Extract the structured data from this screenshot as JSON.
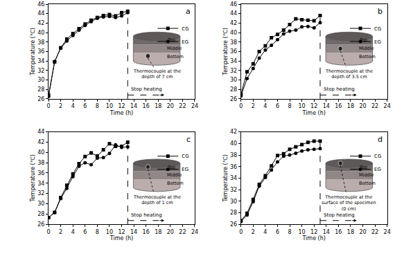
{
  "chart_data": [
    {
      "type": "line",
      "panel_label": "a",
      "x_label": "Time (h)",
      "y_label": "Temperature (℃)",
      "x": [
        0,
        1,
        2,
        3,
        4,
        5,
        6,
        7,
        8,
        9,
        10,
        11,
        12,
        13
      ],
      "series": [
        {
          "name": "CG",
          "color": "#000000",
          "marker": "square",
          "values": [
            26.8,
            33.8,
            36.8,
            38.6,
            39.8,
            40.8,
            41.8,
            42.6,
            43.2,
            43.6,
            43.8,
            43.5,
            44.2,
            44.5
          ]
        },
        {
          "name": "EG",
          "color": "#000000",
          "marker": "circle",
          "values": [
            26.5,
            33.9,
            36.7,
            38.2,
            39.4,
            40.5,
            41.5,
            42.3,
            43.0,
            43.3,
            43.4,
            43.2,
            43.5,
            44.2
          ]
        }
      ],
      "xlim": [
        0,
        24
      ],
      "xticks": [
        0,
        2,
        4,
        6,
        8,
        10,
        12,
        14,
        16,
        18,
        20,
        22,
        24
      ],
      "ylim": [
        26,
        46
      ],
      "yticks": [
        26,
        28,
        30,
        32,
        34,
        36,
        38,
        40,
        42,
        44,
        46
      ],
      "annotations": [
        {
          "text": "Stop heating",
          "x": 13
        }
      ],
      "inset": {
        "layers": [
          "Top",
          "Middle",
          "Bottom"
        ],
        "thermocouple": [
          "Thermocouple at the",
          "depth of 7 cm"
        ]
      }
    },
    {
      "type": "line",
      "panel_label": "b",
      "x_label": "Time (h)",
      "y_label": "Temperature (℃)",
      "x": [
        0,
        1,
        2,
        3,
        4,
        5,
        6,
        7,
        8,
        9,
        10,
        11,
        12,
        13
      ],
      "series": [
        {
          "name": "CG",
          "color": "#000000",
          "marker": "square",
          "values": [
            27.0,
            31.7,
            33.4,
            36.0,
            37.2,
            38.9,
            39.6,
            40.5,
            41.7,
            42.9,
            42.7,
            42.6,
            42.5,
            43.6
          ]
        },
        {
          "name": "EG",
          "color": "#000000",
          "marker": "circle",
          "values": [
            26.6,
            30.3,
            32.4,
            34.6,
            36.3,
            37.3,
            38.5,
            39.7,
            40.3,
            40.5,
            41.2,
            41.3,
            41.0,
            42.1
          ]
        }
      ],
      "xlim": [
        0,
        24
      ],
      "xticks": [
        0,
        2,
        4,
        6,
        8,
        10,
        12,
        14,
        16,
        18,
        20,
        22,
        24
      ],
      "ylim": [
        26,
        46
      ],
      "yticks": [
        26,
        28,
        30,
        32,
        34,
        36,
        38,
        40,
        42,
        44,
        46
      ],
      "annotations": [
        {
          "text": "Stop heating",
          "x": 13
        }
      ],
      "inset": {
        "layers": [
          "Top",
          "Middle",
          "Bottom"
        ],
        "thermocouple": [
          "Thermocouple at the",
          "depth of 3.5 cm"
        ]
      }
    },
    {
      "type": "line",
      "panel_label": "c",
      "x_label": "Time (h)",
      "y_label": "Temperature (℃)",
      "x": [
        0,
        1,
        2,
        3,
        4,
        5,
        6,
        7,
        8,
        9,
        10,
        11,
        12,
        13
      ],
      "series": [
        {
          "name": "CG",
          "color": "#000000",
          "marker": "square",
          "values": [
            27.3,
            28.3,
            31.2,
            33.6,
            35.8,
            37.8,
            39.2,
            39.9,
            39.3,
            40.5,
            41.7,
            41.2,
            41.2,
            42.0
          ]
        },
        {
          "name": "EG",
          "color": "#000000",
          "marker": "circle",
          "values": [
            27.3,
            28.3,
            31.0,
            33.0,
            35.3,
            37.3,
            38.0,
            37.6,
            38.9,
            39.0,
            39.8,
            41.5,
            41.0,
            41.1
          ]
        }
      ],
      "xlim": [
        0,
        24
      ],
      "xticks": [
        0,
        2,
        4,
        6,
        8,
        10,
        12,
        14,
        16,
        18,
        20,
        22,
        24
      ],
      "ylim": [
        26,
        44
      ],
      "yticks": [
        26,
        28,
        30,
        32,
        34,
        36,
        38,
        40,
        42,
        44
      ],
      "annotations": [
        {
          "text": "Stop heating",
          "x": 13
        }
      ],
      "inset": {
        "layers": [
          "Top",
          "Middle",
          "Bottom"
        ],
        "thermocouple": [
          "Thermocouple at the",
          "depth of 1 cm"
        ]
      }
    },
    {
      "type": "line",
      "panel_label": "d",
      "x_label": "Time (h)",
      "y_label": "Temperature (℃)",
      "x": [
        0,
        1,
        2,
        3,
        4,
        5,
        6,
        7,
        8,
        9,
        10,
        11,
        12,
        13
      ],
      "series": [
        {
          "name": "CG",
          "color": "#000000",
          "marker": "square",
          "values": [
            26.6,
            27.9,
            30.3,
            32.9,
            34.4,
            36.1,
            37.9,
            38.2,
            39.0,
            39.4,
            39.8,
            40.2,
            40.4,
            40.4
          ]
        },
        {
          "name": "EG",
          "color": "#000000",
          "marker": "circle",
          "values": [
            26.5,
            27.6,
            29.9,
            32.6,
            34.1,
            35.4,
            36.8,
            37.8,
            38.0,
            38.3,
            38.7,
            38.9,
            39.0,
            39.1
          ]
        }
      ],
      "xlim": [
        0,
        24
      ],
      "xticks": [
        0,
        2,
        4,
        6,
        8,
        10,
        12,
        14,
        16,
        18,
        20,
        22,
        24
      ],
      "ylim": [
        26,
        42
      ],
      "yticks": [
        26,
        28,
        30,
        32,
        34,
        36,
        38,
        40,
        42
      ],
      "annotations": [
        {
          "text": "Stop heating",
          "x": 13
        }
      ],
      "inset": {
        "layers": [
          "Top",
          "Middle",
          "Bottom"
        ],
        "thermocouple": [
          "Thermocouple at the",
          "surface of the specimen",
          "(0 cm)"
        ]
      }
    }
  ]
}
